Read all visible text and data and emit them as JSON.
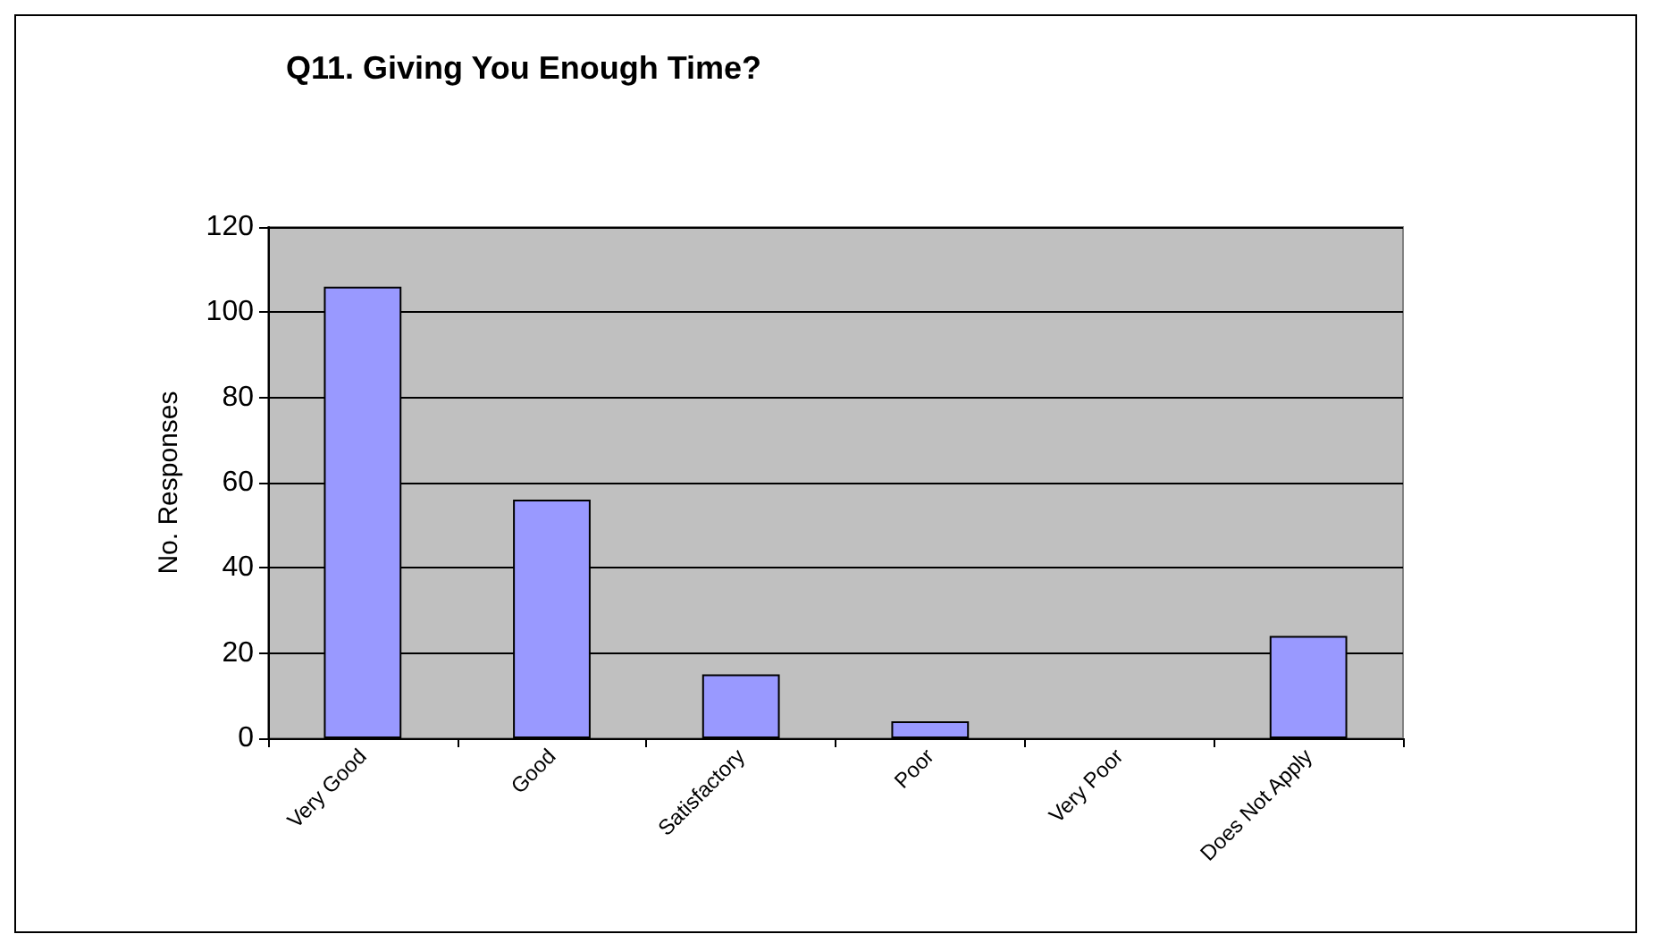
{
  "chart_data": {
    "type": "bar",
    "title": "Q11. Giving You Enough Time?",
    "ylabel": "No. Responses",
    "categories": [
      "Very Good",
      "Good",
      "Satisfactory",
      "Poor",
      "Very Poor",
      "Does Not Apply"
    ],
    "values": [
      106,
      56,
      15,
      4,
      0,
      24
    ],
    "color": "#9999ff",
    "ylim": [
      0,
      120
    ],
    "yticks": [
      0,
      20,
      40,
      60,
      80,
      100,
      120
    ],
    "grid": "y"
  }
}
